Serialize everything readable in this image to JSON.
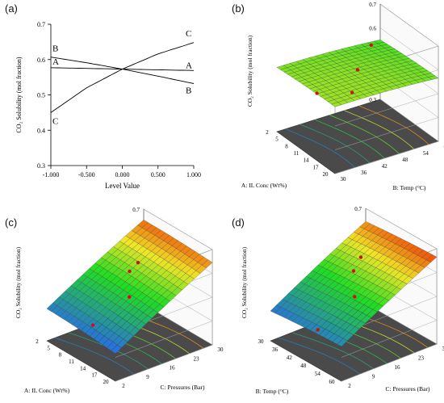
{
  "panels": {
    "a": {
      "label": "(a)"
    },
    "b": {
      "label": "(b)"
    },
    "c": {
      "label": "(c)"
    },
    "d": {
      "label": "(d)"
    }
  },
  "colors": {
    "low": "#2a5cff",
    "mid": "#22dd22",
    "high": "#ee2200",
    "floor": "#4a4a4a",
    "point": "#cc1111"
  },
  "chart_data": [
    {
      "id": "a",
      "type": "line",
      "title": "",
      "xlabel": "Level Value",
      "ylabel": "CO₂ Solubility (mol fraction)",
      "xlim": [
        -1.0,
        1.0
      ],
      "ylim": [
        0.3,
        0.7
      ],
      "xticks": [
        "-1.000",
        "-0.500",
        "0.000",
        "0.500",
        "1.000"
      ],
      "yticks": [
        "0.3",
        "0.4",
        "0.5",
        "0.6",
        "0.7"
      ],
      "grid": false,
      "series": [
        {
          "name": "A",
          "x": [
            -1,
            -0.5,
            0,
            0.5,
            1
          ],
          "y": [
            0.577,
            0.575,
            0.573,
            0.571,
            0.569
          ]
        },
        {
          "name": "B",
          "x": [
            -1,
            -0.5,
            0,
            0.5,
            1
          ],
          "y": [
            0.607,
            0.591,
            0.573,
            0.553,
            0.532
          ]
        },
        {
          "name": "C",
          "x": [
            -1,
            -0.5,
            0,
            0.5,
            1
          ],
          "y": [
            0.45,
            0.52,
            0.573,
            0.616,
            0.648
          ]
        }
      ]
    },
    {
      "id": "b",
      "type": "surface",
      "zlabel": "CO₂ Solubility (mol fraction)",
      "xlabel": "A: IL Conc (Wt%)",
      "ylabel": "B: Temp (°C)",
      "xticks": [
        "2",
        "5",
        "8",
        "11",
        "14",
        "17",
        "20"
      ],
      "yticks": [
        "30",
        "36",
        "42",
        "48",
        "54",
        "60"
      ],
      "zticks": [
        "0.3",
        "0.4",
        "0.5",
        "0.6",
        "0.7"
      ],
      "zlim": [
        0.3,
        0.7
      ],
      "corner_values": {
        "x0y0": 0.575,
        "x1y0": 0.585,
        "x0y1": 0.555,
        "x1y1": 0.57
      },
      "design_points": [
        0.58,
        0.58,
        0.59,
        0.56
      ]
    },
    {
      "id": "c",
      "type": "surface",
      "zlabel": "CO₂ Solubility (mol fraction)",
      "xlabel": "A: IL Conc (Wt%)",
      "ylabel": "C: Pressures (Bar)",
      "xticks": [
        "2",
        "5",
        "8",
        "11",
        "14",
        "17",
        "20"
      ],
      "yticks": [
        "2",
        "9",
        "16",
        "23",
        "30"
      ],
      "zticks": [
        "0.3",
        "0.4",
        "0.5",
        "0.6",
        "0.7"
      ],
      "zlim": [
        0.3,
        0.7
      ],
      "corner_values": {
        "x0y0": 0.44,
        "x1y0": 0.42,
        "x0y1": 0.66,
        "x1y1": 0.65
      },
      "design_points": [
        0.59,
        0.6,
        0.54,
        0.46
      ]
    },
    {
      "id": "d",
      "type": "surface",
      "zlabel": "CO₂ Solubility (mol fraction)",
      "xlabel": "B: Temp (°C)",
      "ylabel": "C: Pressures (Bar)",
      "xticks": [
        "30",
        "36",
        "42",
        "48",
        "54",
        "60"
      ],
      "yticks": [
        "2",
        "9",
        "16",
        "23",
        "30"
      ],
      "zticks": [
        "0.3",
        "0.4",
        "0.5",
        "0.6",
        "0.7"
      ],
      "zlim": [
        0.3,
        0.7
      ],
      "corner_values": {
        "x0y0": 0.43,
        "x1y0": 0.45,
        "x0y1": 0.65,
        "x1y1": 0.67
      },
      "design_points": [
        0.59,
        0.6,
        0.56,
        0.44
      ]
    }
  ]
}
